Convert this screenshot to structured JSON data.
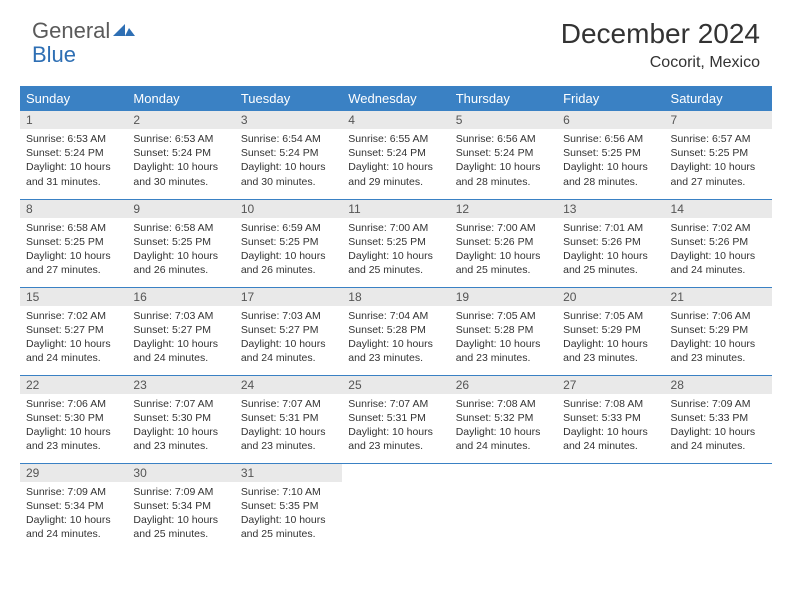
{
  "logo": {
    "general": "General",
    "blue": "Blue"
  },
  "title": "December 2024",
  "location": "Cocorit, Mexico",
  "colors": {
    "header_bg": "#3a81c4",
    "header_text": "#ffffff",
    "daynum_bg": "#e9e9e9",
    "text": "#333333",
    "logo_gray": "#5a5a5a",
    "logo_blue": "#2e6fb4"
  },
  "typography": {
    "title_fontsize": 28,
    "location_fontsize": 16,
    "dayheader_fontsize": 13,
    "body_fontsize": 10.5
  },
  "day_headers": [
    "Sunday",
    "Monday",
    "Tuesday",
    "Wednesday",
    "Thursday",
    "Friday",
    "Saturday"
  ],
  "weeks": [
    [
      {
        "n": "1",
        "sr": "6:53 AM",
        "ss": "5:24 PM",
        "dh": "10",
        "dm": "31"
      },
      {
        "n": "2",
        "sr": "6:53 AM",
        "ss": "5:24 PM",
        "dh": "10",
        "dm": "30"
      },
      {
        "n": "3",
        "sr": "6:54 AM",
        "ss": "5:24 PM",
        "dh": "10",
        "dm": "30"
      },
      {
        "n": "4",
        "sr": "6:55 AM",
        "ss": "5:24 PM",
        "dh": "10",
        "dm": "29"
      },
      {
        "n": "5",
        "sr": "6:56 AM",
        "ss": "5:24 PM",
        "dh": "10",
        "dm": "28"
      },
      {
        "n": "6",
        "sr": "6:56 AM",
        "ss": "5:25 PM",
        "dh": "10",
        "dm": "28"
      },
      {
        "n": "7",
        "sr": "6:57 AM",
        "ss": "5:25 PM",
        "dh": "10",
        "dm": "27"
      }
    ],
    [
      {
        "n": "8",
        "sr": "6:58 AM",
        "ss": "5:25 PM",
        "dh": "10",
        "dm": "27"
      },
      {
        "n": "9",
        "sr": "6:58 AM",
        "ss": "5:25 PM",
        "dh": "10",
        "dm": "26"
      },
      {
        "n": "10",
        "sr": "6:59 AM",
        "ss": "5:25 PM",
        "dh": "10",
        "dm": "26"
      },
      {
        "n": "11",
        "sr": "7:00 AM",
        "ss": "5:25 PM",
        "dh": "10",
        "dm": "25"
      },
      {
        "n": "12",
        "sr": "7:00 AM",
        "ss": "5:26 PM",
        "dh": "10",
        "dm": "25"
      },
      {
        "n": "13",
        "sr": "7:01 AM",
        "ss": "5:26 PM",
        "dh": "10",
        "dm": "25"
      },
      {
        "n": "14",
        "sr": "7:02 AM",
        "ss": "5:26 PM",
        "dh": "10",
        "dm": "24"
      }
    ],
    [
      {
        "n": "15",
        "sr": "7:02 AM",
        "ss": "5:27 PM",
        "dh": "10",
        "dm": "24"
      },
      {
        "n": "16",
        "sr": "7:03 AM",
        "ss": "5:27 PM",
        "dh": "10",
        "dm": "24"
      },
      {
        "n": "17",
        "sr": "7:03 AM",
        "ss": "5:27 PM",
        "dh": "10",
        "dm": "24"
      },
      {
        "n": "18",
        "sr": "7:04 AM",
        "ss": "5:28 PM",
        "dh": "10",
        "dm": "23"
      },
      {
        "n": "19",
        "sr": "7:05 AM",
        "ss": "5:28 PM",
        "dh": "10",
        "dm": "23"
      },
      {
        "n": "20",
        "sr": "7:05 AM",
        "ss": "5:29 PM",
        "dh": "10",
        "dm": "23"
      },
      {
        "n": "21",
        "sr": "7:06 AM",
        "ss": "5:29 PM",
        "dh": "10",
        "dm": "23"
      }
    ],
    [
      {
        "n": "22",
        "sr": "7:06 AM",
        "ss": "5:30 PM",
        "dh": "10",
        "dm": "23"
      },
      {
        "n": "23",
        "sr": "7:07 AM",
        "ss": "5:30 PM",
        "dh": "10",
        "dm": "23"
      },
      {
        "n": "24",
        "sr": "7:07 AM",
        "ss": "5:31 PM",
        "dh": "10",
        "dm": "23"
      },
      {
        "n": "25",
        "sr": "7:07 AM",
        "ss": "5:31 PM",
        "dh": "10",
        "dm": "23"
      },
      {
        "n": "26",
        "sr": "7:08 AM",
        "ss": "5:32 PM",
        "dh": "10",
        "dm": "24"
      },
      {
        "n": "27",
        "sr": "7:08 AM",
        "ss": "5:33 PM",
        "dh": "10",
        "dm": "24"
      },
      {
        "n": "28",
        "sr": "7:09 AM",
        "ss": "5:33 PM",
        "dh": "10",
        "dm": "24"
      }
    ],
    [
      {
        "n": "29",
        "sr": "7:09 AM",
        "ss": "5:34 PM",
        "dh": "10",
        "dm": "24"
      },
      {
        "n": "30",
        "sr": "7:09 AM",
        "ss": "5:34 PM",
        "dh": "10",
        "dm": "25"
      },
      {
        "n": "31",
        "sr": "7:10 AM",
        "ss": "5:35 PM",
        "dh": "10",
        "dm": "25"
      },
      null,
      null,
      null,
      null
    ]
  ],
  "labels": {
    "sunrise_prefix": "Sunrise: ",
    "sunset_prefix": "Sunset: ",
    "daylight_prefix": "Daylight: ",
    "hours_word": " hours",
    "and_word": "and ",
    "minutes_word": " minutes."
  }
}
